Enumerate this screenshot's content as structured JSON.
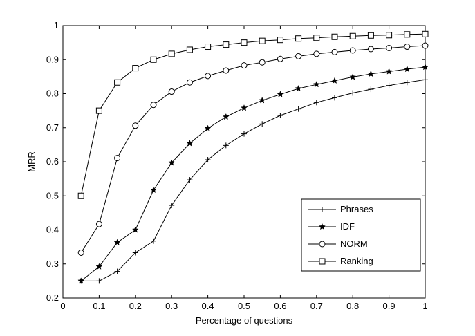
{
  "chart_data": {
    "type": "line",
    "xlabel": "Percentage of questions",
    "ylabel": "MRR",
    "xlim": [
      0,
      1
    ],
    "ylim": [
      0.2,
      1
    ],
    "xticks": [
      "0",
      "0.1",
      "0.2",
      "0.3",
      "0.4",
      "0.5",
      "0.6",
      "0.7",
      "0.8",
      "0.9",
      "1"
    ],
    "yticks": [
      "0.2",
      "0.3",
      "0.4",
      "0.5",
      "0.6",
      "0.7",
      "0.8",
      "0.9",
      "1"
    ],
    "grid": false,
    "legend_position": "bottom-right",
    "x": [
      0.05,
      0.1,
      0.15,
      0.2,
      0.25,
      0.3,
      0.35,
      0.4,
      0.45,
      0.5,
      0.55,
      0.6,
      0.65,
      0.7,
      0.75,
      0.8,
      0.85,
      0.9,
      0.95,
      1.0
    ],
    "series": [
      {
        "name": "Phrases",
        "marker": "plus",
        "values": [
          0.25,
          0.25,
          0.278,
          0.333,
          0.367,
          0.472,
          0.547,
          0.606,
          0.648,
          0.682,
          0.711,
          0.736,
          0.755,
          0.774,
          0.788,
          0.802,
          0.813,
          0.824,
          0.833,
          0.841
        ]
      },
      {
        "name": "IDF",
        "marker": "star",
        "values": [
          0.25,
          0.292,
          0.363,
          0.4,
          0.517,
          0.597,
          0.654,
          0.698,
          0.732,
          0.758,
          0.78,
          0.798,
          0.815,
          0.827,
          0.838,
          0.849,
          0.858,
          0.865,
          0.872,
          0.878
        ]
      },
      {
        "name": "NORM",
        "marker": "circle",
        "values": [
          0.333,
          0.417,
          0.611,
          0.706,
          0.767,
          0.806,
          0.833,
          0.852,
          0.868,
          0.883,
          0.892,
          0.902,
          0.91,
          0.917,
          0.922,
          0.927,
          0.931,
          0.934,
          0.938,
          0.941
        ]
      },
      {
        "name": "Ranking",
        "marker": "square",
        "values": [
          0.5,
          0.75,
          0.833,
          0.875,
          0.9,
          0.917,
          0.929,
          0.938,
          0.944,
          0.95,
          0.955,
          0.958,
          0.962,
          0.964,
          0.967,
          0.969,
          0.971,
          0.972,
          0.974,
          0.975
        ]
      }
    ]
  }
}
